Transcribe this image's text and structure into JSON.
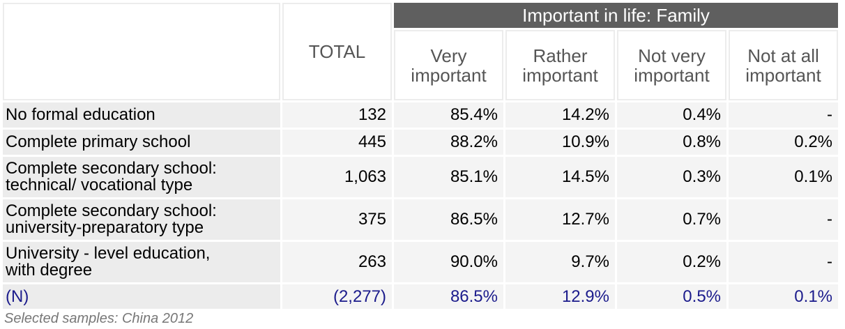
{
  "chart_data": {
    "type": "table",
    "title": "Important in life: Family",
    "columns": [
      "TOTAL",
      "Very important",
      "Rather important",
      "Not very important",
      "Not at all important"
    ],
    "header": {
      "group_title": "Important in life: Family",
      "total_label": "TOTAL",
      "sub_columns": [
        [
          "Very",
          "important"
        ],
        [
          "Rather",
          "important"
        ],
        [
          "Not very",
          "important"
        ],
        [
          "Not at all",
          "important"
        ]
      ]
    },
    "rows": [
      {
        "label": [
          "No formal education"
        ],
        "values": [
          "132",
          "85.4%",
          "14.2%",
          "0.4%",
          "-"
        ]
      },
      {
        "label": [
          "Complete primary school"
        ],
        "values": [
          "445",
          "88.2%",
          "10.9%",
          "0.8%",
          "0.2%"
        ]
      },
      {
        "label": [
          "Complete secondary school:",
          "technical/ vocational type"
        ],
        "values": [
          "1,063",
          "85.1%",
          "14.5%",
          "0.3%",
          "0.1%"
        ]
      },
      {
        "label": [
          "Complete secondary school:",
          "university-preparatory type"
        ],
        "values": [
          "375",
          "86.5%",
          "12.7%",
          "0.7%",
          "-"
        ]
      },
      {
        "label": [
          "University - level education,",
          "with degree"
        ],
        "values": [
          "263",
          "90.0%",
          "9.7%",
          "0.2%",
          "-"
        ]
      }
    ],
    "total_row": {
      "label": "(N)",
      "values": [
        "(2,277)",
        "86.5%",
        "12.9%",
        "0.5%",
        "0.1%"
      ]
    },
    "footnote": "Selected samples: China 2012"
  }
}
